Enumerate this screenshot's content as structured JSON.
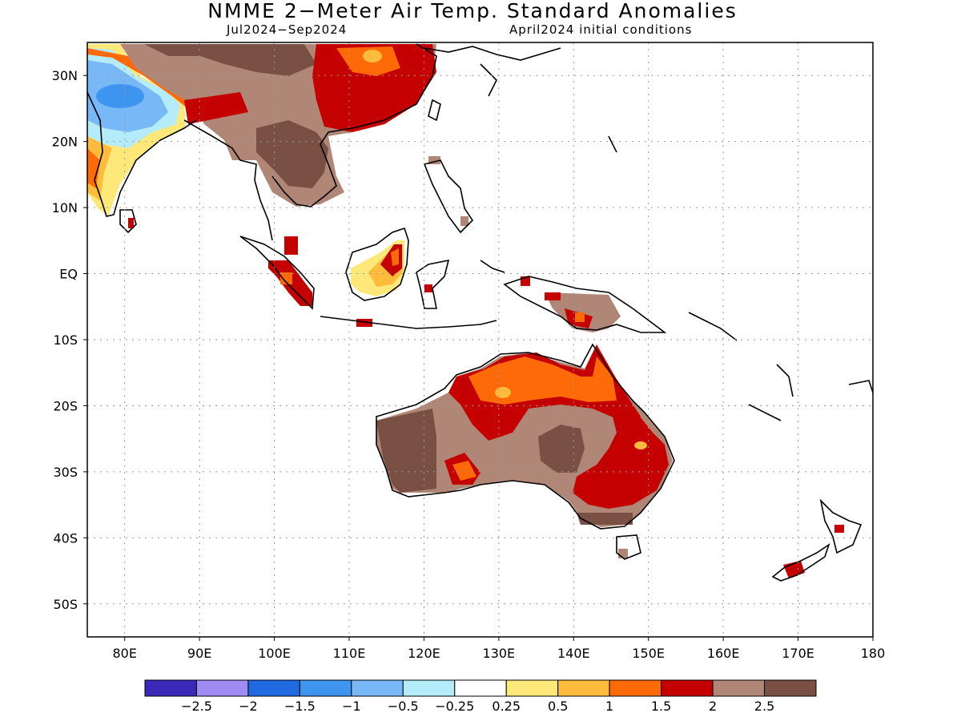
{
  "title": "NMME 2−Meter Air Temp. Standard Anomalies",
  "subtitle_left": "Jul2024−Sep2024",
  "subtitle_right": "April2024 initial conditions",
  "map": {
    "lon_range": [
      75,
      180
    ],
    "lat_range": [
      -55,
      35
    ],
    "grid": true,
    "lon_ticks": [
      {
        "value": 80,
        "label": "80E"
      },
      {
        "value": 90,
        "label": "90E"
      },
      {
        "value": 100,
        "label": "100E"
      },
      {
        "value": 110,
        "label": "110E"
      },
      {
        "value": 120,
        "label": "120E"
      },
      {
        "value": 130,
        "label": "130E"
      },
      {
        "value": 140,
        "label": "140E"
      },
      {
        "value": 150,
        "label": "150E"
      },
      {
        "value": 160,
        "label": "160E"
      },
      {
        "value": 170,
        "label": "170E"
      },
      {
        "value": 180,
        "label": "180"
      }
    ],
    "lat_ticks": [
      {
        "value": 30,
        "label": "30N"
      },
      {
        "value": 20,
        "label": "20N"
      },
      {
        "value": 10,
        "label": "10N"
      },
      {
        "value": 0,
        "label": "EQ"
      },
      {
        "value": -10,
        "label": "10S"
      },
      {
        "value": -20,
        "label": "20S"
      },
      {
        "value": -30,
        "label": "30S"
      },
      {
        "value": -40,
        "label": "40S"
      },
      {
        "value": -50,
        "label": "50S"
      }
    ]
  },
  "colorbar": {
    "colors": [
      "#3a28b8",
      "#9f8cf2",
      "#1f6ae0",
      "#3d95f0",
      "#78b8f7",
      "#b4ecfa",
      "#ffffff",
      "#ffe87a",
      "#ffbb3b",
      "#ff6a08",
      "#c40000",
      "#b08677",
      "#7a5045"
    ],
    "labels": [
      "−2.5",
      "−2",
      "−1.5",
      "−1",
      "−0.5",
      "−0.25",
      "0.25",
      "0.5",
      "1",
      "1.5",
      "2",
      "2.5"
    ]
  }
}
